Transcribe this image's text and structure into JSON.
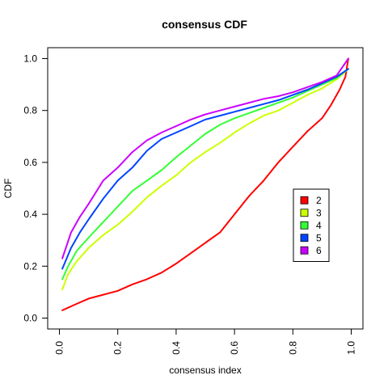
{
  "chart_data": {
    "type": "line",
    "title": "consensus CDF",
    "xlabel": "consensus index",
    "ylabel": "CDF",
    "xlim": [
      0,
      1
    ],
    "ylim": [
      0,
      1
    ],
    "xticks": [
      "0.0",
      "0.2",
      "0.4",
      "0.6",
      "0.8",
      "1.0"
    ],
    "yticks": [
      "0.0",
      "0.2",
      "0.4",
      "0.6",
      "0.8",
      "1.0"
    ],
    "grid": false,
    "legend_position": "right",
    "series": [
      {
        "name": "2",
        "color": "#ff0000",
        "points": [
          [
            0.01,
            0.03
          ],
          [
            0.05,
            0.05
          ],
          [
            0.1,
            0.075
          ],
          [
            0.15,
            0.09
          ],
          [
            0.2,
            0.105
          ],
          [
            0.25,
            0.13
          ],
          [
            0.3,
            0.15
          ],
          [
            0.35,
            0.175
          ],
          [
            0.4,
            0.21
          ],
          [
            0.45,
            0.25
          ],
          [
            0.5,
            0.29
          ],
          [
            0.55,
            0.33
          ],
          [
            0.6,
            0.4
          ],
          [
            0.65,
            0.47
          ],
          [
            0.7,
            0.53
          ],
          [
            0.75,
            0.6
          ],
          [
            0.8,
            0.66
          ],
          [
            0.85,
            0.72
          ],
          [
            0.9,
            0.77
          ],
          [
            0.93,
            0.82
          ],
          [
            0.96,
            0.88
          ],
          [
            0.98,
            0.93
          ],
          [
            0.99,
            1.0
          ]
        ]
      },
      {
        "name": "3",
        "color": "#ccff00",
        "points": [
          [
            0.01,
            0.11
          ],
          [
            0.03,
            0.17
          ],
          [
            0.06,
            0.22
          ],
          [
            0.1,
            0.27
          ],
          [
            0.15,
            0.32
          ],
          [
            0.2,
            0.36
          ],
          [
            0.25,
            0.41
          ],
          [
            0.3,
            0.465
          ],
          [
            0.35,
            0.51
          ],
          [
            0.4,
            0.55
          ],
          [
            0.45,
            0.6
          ],
          [
            0.5,
            0.64
          ],
          [
            0.55,
            0.675
          ],
          [
            0.6,
            0.715
          ],
          [
            0.65,
            0.75
          ],
          [
            0.7,
            0.78
          ],
          [
            0.75,
            0.8
          ],
          [
            0.8,
            0.83
          ],
          [
            0.85,
            0.86
          ],
          [
            0.9,
            0.885
          ],
          [
            0.95,
            0.92
          ],
          [
            0.99,
            0.96
          ]
        ]
      },
      {
        "name": "4",
        "color": "#33ff33",
        "points": [
          [
            0.01,
            0.15
          ],
          [
            0.03,
            0.2
          ],
          [
            0.06,
            0.26
          ],
          [
            0.1,
            0.31
          ],
          [
            0.15,
            0.37
          ],
          [
            0.2,
            0.43
          ],
          [
            0.25,
            0.49
          ],
          [
            0.3,
            0.53
          ],
          [
            0.35,
            0.57
          ],
          [
            0.4,
            0.62
          ],
          [
            0.45,
            0.665
          ],
          [
            0.5,
            0.71
          ],
          [
            0.55,
            0.745
          ],
          [
            0.6,
            0.77
          ],
          [
            0.65,
            0.79
          ],
          [
            0.7,
            0.81
          ],
          [
            0.75,
            0.83
          ],
          [
            0.8,
            0.85
          ],
          [
            0.85,
            0.875
          ],
          [
            0.9,
            0.9
          ],
          [
            0.95,
            0.925
          ],
          [
            0.99,
            0.96
          ]
        ]
      },
      {
        "name": "5",
        "color": "#0044ff",
        "points": [
          [
            0.01,
            0.19
          ],
          [
            0.04,
            0.27
          ],
          [
            0.07,
            0.33
          ],
          [
            0.1,
            0.38
          ],
          [
            0.15,
            0.46
          ],
          [
            0.2,
            0.53
          ],
          [
            0.25,
            0.58
          ],
          [
            0.3,
            0.645
          ],
          [
            0.35,
            0.69
          ],
          [
            0.4,
            0.715
          ],
          [
            0.45,
            0.74
          ],
          [
            0.5,
            0.765
          ],
          [
            0.55,
            0.78
          ],
          [
            0.6,
            0.795
          ],
          [
            0.65,
            0.81
          ],
          [
            0.7,
            0.825
          ],
          [
            0.75,
            0.84
          ],
          [
            0.8,
            0.86
          ],
          [
            0.85,
            0.88
          ],
          [
            0.9,
            0.905
          ],
          [
            0.95,
            0.93
          ],
          [
            0.99,
            0.96
          ]
        ]
      },
      {
        "name": "6",
        "color": "#cc00ff",
        "points": [
          [
            0.01,
            0.23
          ],
          [
            0.04,
            0.33
          ],
          [
            0.07,
            0.39
          ],
          [
            0.1,
            0.44
          ],
          [
            0.15,
            0.53
          ],
          [
            0.2,
            0.58
          ],
          [
            0.25,
            0.64
          ],
          [
            0.3,
            0.685
          ],
          [
            0.35,
            0.715
          ],
          [
            0.4,
            0.74
          ],
          [
            0.45,
            0.765
          ],
          [
            0.5,
            0.785
          ],
          [
            0.55,
            0.8
          ],
          [
            0.6,
            0.815
          ],
          [
            0.65,
            0.83
          ],
          [
            0.7,
            0.845
          ],
          [
            0.75,
            0.855
          ],
          [
            0.8,
            0.87
          ],
          [
            0.85,
            0.89
          ],
          [
            0.9,
            0.91
          ],
          [
            0.95,
            0.935
          ],
          [
            0.99,
            1.0
          ]
        ]
      }
    ]
  }
}
